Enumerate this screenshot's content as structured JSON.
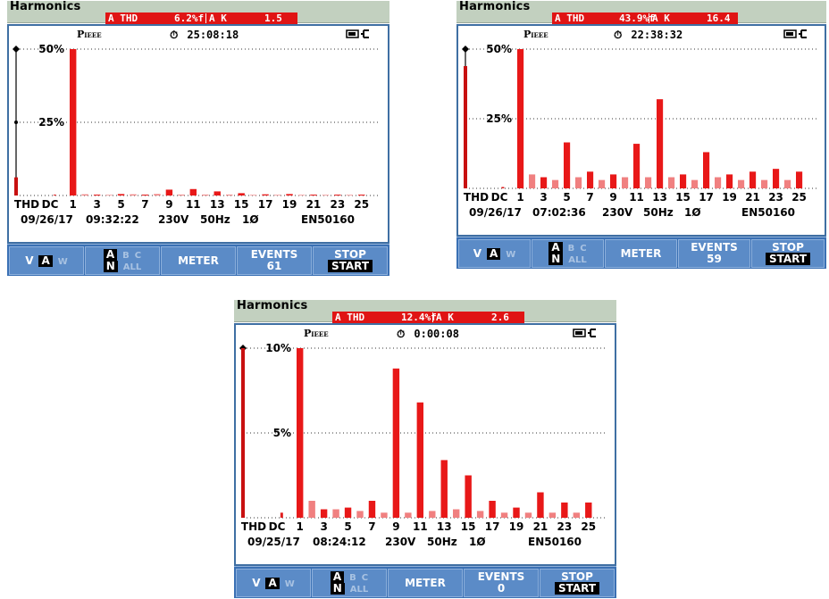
{
  "screens": [
    {
      "title": "Harmonics",
      "thd_label": "A THD",
      "thd_value": "6.2%f",
      "k_label": "A K",
      "k_value": "1.5",
      "mode": "P",
      "mode_sub": "IEEE",
      "timer_icon": "timer-icon",
      "time": "25:08:18",
      "battery_icon": "battery-plug-icon",
      "y_max": "50%",
      "y_mid": "25%",
      "x_labels": [
        "THD",
        "DC",
        "1",
        "3",
        "5",
        "7",
        "9",
        "11",
        "13",
        "15",
        "17",
        "19",
        "21",
        "23",
        "25"
      ],
      "date": "09/26/17",
      "clock": "09:32:22",
      "voltage": "230V",
      "frequency": "50Hz",
      "phase": "1Ø",
      "standard": "EN50160",
      "menu": {
        "vam": [
          "V",
          "A",
          "W"
        ],
        "phase_top": [
          "A",
          "B",
          "C"
        ],
        "phase_bottom": [
          "N",
          "ALL"
        ],
        "meter": "METER",
        "events_label": "EVENTS",
        "events_count": "61",
        "stop": "STOP",
        "start": "START"
      },
      "chart_data": {
        "type": "bar",
        "ylim": [
          0,
          50
        ],
        "ylabel_ticks": [
          "25%",
          "50%"
        ],
        "thd": 6.2,
        "dc": 0.3,
        "harmonics": [
          50,
          0.4,
          0.3,
          0.2,
          0.5,
          0.4,
          0.3,
          0.5,
          2.0,
          0.3,
          2.2,
          0.3,
          1.4,
          0.3,
          0.8,
          0.2,
          0.4,
          0.2,
          0.5,
          0.2,
          0.3,
          0.2,
          0.3,
          0.2,
          0.3
        ]
      }
    },
    {
      "title": "Harmonics",
      "thd_label": "A THD",
      "thd_value": "43.9%f",
      "k_label": "A K",
      "k_value": "16.4",
      "mode": "P",
      "mode_sub": "IEEE",
      "timer_icon": "timer-icon",
      "time": "22:38:32",
      "battery_icon": "battery-plug-icon",
      "y_max": "50%",
      "y_mid": "25%",
      "x_labels": [
        "THD",
        "DC",
        "1",
        "3",
        "5",
        "7",
        "9",
        "11",
        "13",
        "15",
        "17",
        "19",
        "21",
        "23",
        "25"
      ],
      "date": "09/26/17",
      "clock": "07:02:36",
      "voltage": "230V",
      "frequency": "50Hz",
      "phase": "1Ø",
      "standard": "EN50160",
      "menu": {
        "vam": [
          "V",
          "A",
          "W"
        ],
        "phase_top": [
          "A",
          "B",
          "C"
        ],
        "phase_bottom": [
          "N",
          "ALL"
        ],
        "meter": "METER",
        "events_label": "EVENTS",
        "events_count": "59",
        "stop": "STOP",
        "start": "START"
      },
      "chart_data": {
        "type": "bar",
        "ylim": [
          0,
          50
        ],
        "ylabel_ticks": [
          "25%",
          "50%"
        ],
        "thd": 43.9,
        "dc": 0.5,
        "harmonics": [
          50,
          5,
          4,
          3,
          16.5,
          4,
          6,
          3,
          5,
          4,
          16,
          4,
          32,
          4,
          5,
          3,
          13,
          4,
          5,
          3,
          6,
          3,
          7,
          3,
          6
        ]
      }
    },
    {
      "title": "Harmonics",
      "thd_label": "A THD",
      "thd_value": "12.4%f",
      "k_label": "A K",
      "k_value": "2.6",
      "mode": "P",
      "mode_sub": "IEEE",
      "timer_icon": "timer-icon",
      "time": "0:00:08",
      "battery_icon": "battery-plug-icon",
      "y_max": "10%",
      "y_mid": "5%",
      "x_labels": [
        "THD",
        "DC",
        "1",
        "3",
        "5",
        "7",
        "9",
        "11",
        "13",
        "15",
        "17",
        "19",
        "21",
        "23",
        "25"
      ],
      "date": "09/25/17",
      "clock": "08:24:12",
      "voltage": "230V",
      "frequency": "50Hz",
      "phase": "1Ø",
      "standard": "EN50160",
      "menu": {
        "vam": [
          "V",
          "A",
          "W"
        ],
        "phase_top": [
          "A",
          "B",
          "C"
        ],
        "phase_bottom": [
          "N",
          "ALL"
        ],
        "meter": "METER",
        "events_label": "EVENTS",
        "events_count": "0",
        "stop": "STOP",
        "start": "START"
      },
      "chart_data": {
        "type": "bar",
        "ylim": [
          0,
          10
        ],
        "ylabel_ticks": [
          "5%",
          "10%"
        ],
        "thd": 10,
        "dc": 0.3,
        "harmonics": [
          10,
          1.0,
          0.5,
          0.5,
          0.6,
          0.4,
          1.0,
          0.3,
          8.8,
          0.3,
          6.8,
          0.4,
          3.4,
          0.5,
          2.5,
          0.4,
          1.0,
          0.3,
          0.6,
          0.3,
          1.5,
          0.3,
          0.9,
          0.3,
          0.9
        ]
      }
    }
  ]
}
